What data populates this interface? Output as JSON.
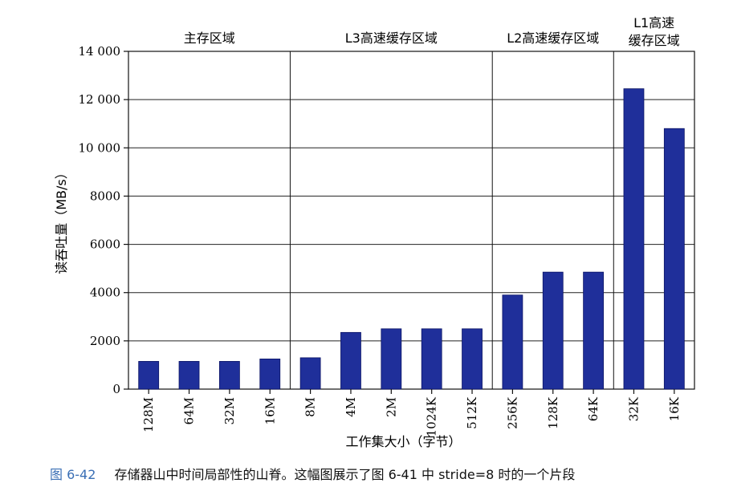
{
  "chart_data": {
    "type": "bar",
    "xlabel": "工作集大小（字节）",
    "ylabel": "读吞吐量（MB/s）",
    "ylim": [
      0,
      14000
    ],
    "yticks": [
      0,
      2000,
      4000,
      6000,
      8000,
      10000,
      12000,
      14000
    ],
    "ytick_labels": [
      "0",
      "2000",
      "4000",
      "6000",
      "8000",
      "10 000",
      "12 000",
      "14 000"
    ],
    "grid": true,
    "bar_color": "#1f2f9a",
    "categories": [
      "128M",
      "64M",
      "32M",
      "16M",
      "8M",
      "4M",
      "2M",
      "1024K",
      "512K",
      "256K",
      "128K",
      "64K",
      "32K",
      "16K"
    ],
    "values": [
      1150,
      1150,
      1150,
      1250,
      1300,
      2350,
      2500,
      2500,
      2500,
      3900,
      4850,
      4850,
      12450,
      10800
    ],
    "regions": [
      {
        "label": "主存区域",
        "start": 0,
        "end": 3
      },
      {
        "label": "L3高速缓存区域",
        "start": 4,
        "end": 8
      },
      {
        "label": "L2高速缓存区域",
        "start": 9,
        "end": 11
      },
      {
        "label": "L1高速缓存区域",
        "lines": [
          "L1高速",
          "缓存区域"
        ],
        "start": 12,
        "end": 13
      }
    ]
  },
  "caption": {
    "number": "图 6-42",
    "text": "存储器山中时间局部性的山脊。这幅图展示了图 6-41 中 stride=8 时的一个片段"
  }
}
